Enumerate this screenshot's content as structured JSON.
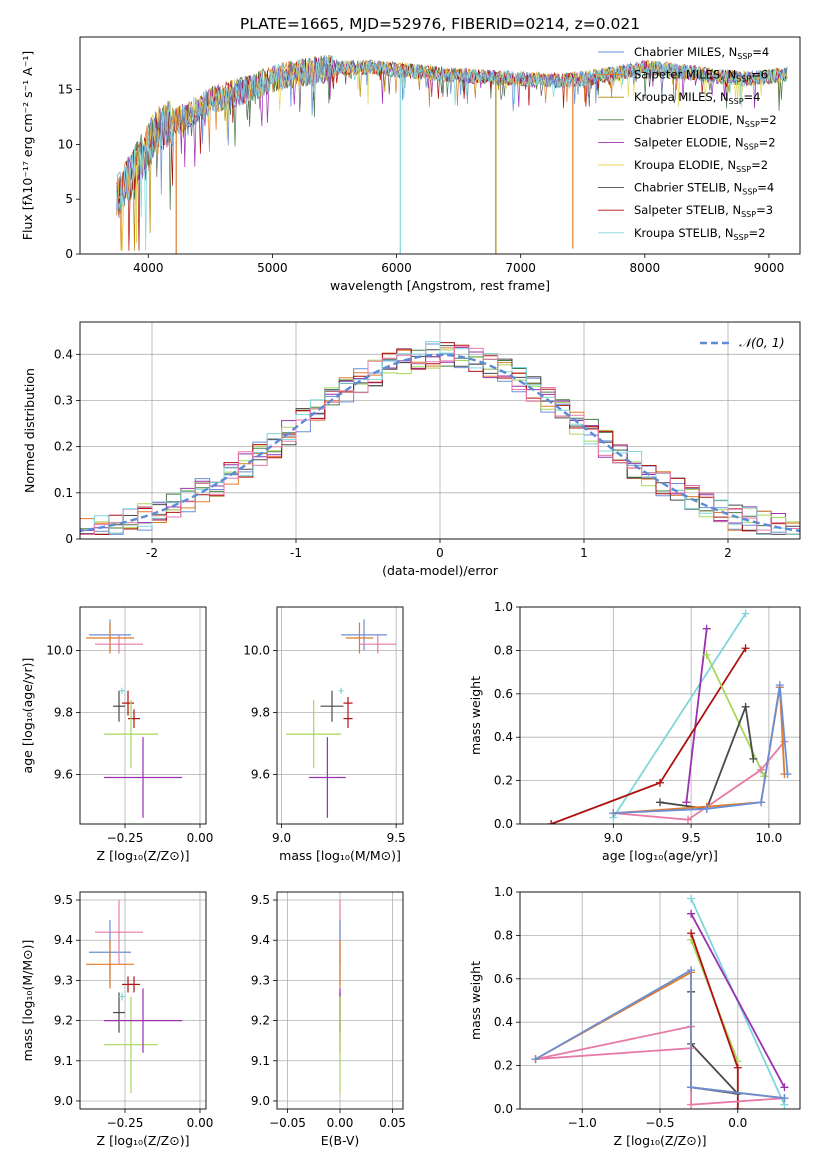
{
  "figure": {
    "title": "PLATE=1665, MJD=52976, FIBERID=0214, z=0.021"
  },
  "colors": {
    "c0": "#6b8fd6",
    "c1": "#e07b2a",
    "c2": "#b8860b",
    "c3": "#4a7a4a",
    "c4": "#9b30b0",
    "c5": "#e8d85a",
    "c6": "#4a4a4a",
    "c7": "#b01010",
    "c8": "#7fd6dc",
    "c9": "#e87aa8",
    "c10": "#a6d85a"
  },
  "chart_data": [
    {
      "id": "spectrum",
      "type": "line",
      "xlabel": "wavelength [Angstrom, rest frame]",
      "ylabel": "Flux [fλ10⁻¹⁷ erg cm⁻² s⁻¹ A⁻¹]",
      "xlim": [
        3450,
        9250
      ],
      "ylim": [
        0,
        19.8
      ],
      "xticks": [
        4000,
        5000,
        6000,
        7000,
        8000,
        9000
      ],
      "yticks": [
        0,
        5,
        10,
        15
      ],
      "grid": false,
      "legend_position": "top-right",
      "continuum": {
        "x": [
          3750,
          3850,
          4000,
          4100,
          4300,
          4500,
          4800,
          5000,
          5200,
          5500,
          5800,
          6000,
          6300,
          6600,
          7000,
          7300,
          7500,
          7800,
          8000,
          8200,
          8400,
          8600,
          8800,
          9000,
          9150
        ],
        "y": [
          5,
          7,
          10,
          11.5,
          12.5,
          14,
          15,
          16,
          16.5,
          17,
          17,
          16.8,
          16.5,
          16.2,
          16,
          15.8,
          16,
          16.5,
          17,
          16.8,
          16.5,
          16.2,
          16,
          16.2,
          16.4
        ]
      },
      "spikes": [
        {
          "x": 4225,
          "y": 0,
          "series": 1
        },
        {
          "x": 6030,
          "y": 0,
          "series": 8
        },
        {
          "x": 6800,
          "y": 0,
          "series": 2
        },
        {
          "x": 7420,
          "y": 0.5,
          "series": 1
        },
        {
          "x": 3905,
          "y": 1.0,
          "series": 5
        }
      ],
      "series": [
        {
          "name": "Chabrier MILES, N",
          "sub": "SSP",
          "suffix": "=4",
          "color": "c0"
        },
        {
          "name": "Salpeter MILES, N",
          "sub": "SSP",
          "suffix": "=6",
          "color": "c1"
        },
        {
          "name": "Kroupa MILES, N",
          "sub": "SSP",
          "suffix": "=4",
          "color": "c2"
        },
        {
          "name": "Chabrier ELODIE, N",
          "sub": "SSP",
          "suffix": "=2",
          "color": "c3"
        },
        {
          "name": "Salpeter ELODIE, N",
          "sub": "SSP",
          "suffix": "=2",
          "color": "c4"
        },
        {
          "name": "Kroupa ELODIE, N",
          "sub": "SSP",
          "suffix": "=2",
          "color": "c5"
        },
        {
          "name": "Chabrier STELIB, N",
          "sub": "SSP",
          "suffix": "=4",
          "color": "c6"
        },
        {
          "name": "Salpeter STELIB, N",
          "sub": "SSP",
          "suffix": "=3",
          "color": "c7"
        },
        {
          "name": "Kroupa STELIB, N",
          "sub": "SSP",
          "suffix": "=2",
          "color": "c8"
        }
      ]
    },
    {
      "id": "residuals",
      "type": "step-histogram",
      "xlabel": "(data-model)/error",
      "ylabel": "Normed distribution",
      "xlim": [
        -2.5,
        2.5
      ],
      "ylim": [
        0,
        0.47
      ],
      "xticks": [
        -2,
        -1,
        0,
        1,
        2
      ],
      "yticks": [
        0.0,
        0.1,
        0.2,
        0.3,
        0.4
      ],
      "grid": true,
      "bin_width": 0.1,
      "legend_position": "top-right",
      "gaussian": {
        "label": "𝒩(0, 1)",
        "mu": 0,
        "sigma": 1,
        "color": "#5b8bd6"
      },
      "histogram_colors": [
        "c0",
        "c1",
        "c3",
        "c4",
        "c10",
        "c6",
        "c7",
        "c8",
        "c9"
      ]
    },
    {
      "id": "z_age",
      "type": "errorbar",
      "xlabel": "Z [log₁₀(Z/Z⊙)]",
      "ylabel": "age  [log₁₀(age/yr)]",
      "xlim": [
        -0.4,
        0.02
      ],
      "ylim": [
        9.44,
        10.14
      ],
      "xticks": [
        -0.25,
        0.0
      ],
      "xticklabels": [
        "−0.25",
        "0.00"
      ],
      "yticks": [
        9.6,
        9.8,
        10.0
      ],
      "yticklabels": [
        "9.6",
        "9.8",
        "10.0"
      ],
      "grid": true,
      "points": [
        {
          "x": -0.3,
          "y": 10.05,
          "xerr": 0.07,
          "yerr": 0.05,
          "color": "c0"
        },
        {
          "x": -0.3,
          "y": 10.04,
          "xerr": 0.08,
          "yerr": 0.05,
          "color": "c1"
        },
        {
          "x": -0.27,
          "y": 10.02,
          "xerr": 0.08,
          "yerr": 0.03,
          "color": "c9"
        },
        {
          "x": -0.27,
          "y": 9.82,
          "xerr": 0.02,
          "yerr": 0.05,
          "color": "c6"
        },
        {
          "x": -0.26,
          "y": 9.87,
          "xerr": 0.01,
          "yerr": 0.01,
          "color": "c8"
        },
        {
          "x": -0.24,
          "y": 9.83,
          "xerr": 0.02,
          "yerr": 0.04,
          "color": "c7"
        },
        {
          "x": -0.22,
          "y": 9.78,
          "xerr": 0.02,
          "yerr": 0.03,
          "color": "c7"
        },
        {
          "x": -0.23,
          "y": 9.73,
          "xerr": 0.09,
          "yerr": 0.11,
          "color": "c10"
        },
        {
          "x": -0.19,
          "y": 9.59,
          "xerr": 0.13,
          "yerr": 0.13,
          "color": "c4"
        }
      ]
    },
    {
      "id": "mass_age",
      "type": "errorbar",
      "xlabel": "mass [log₁₀(M/M⊙)]",
      "ylabel": "",
      "xlim": [
        8.98,
        9.53
      ],
      "ylim": [
        9.44,
        10.14
      ],
      "xticks": [
        9.0,
        9.5
      ],
      "xticklabels": [
        "9.0",
        "9.5"
      ],
      "yticks": [
        9.6,
        9.8,
        10.0
      ],
      "yticklabels": [
        "9.6",
        "9.8",
        "10.0"
      ],
      "grid": true,
      "points": [
        {
          "x": 9.36,
          "y": 10.05,
          "xerr": 0.1,
          "yerr": 0.05,
          "color": "c0"
        },
        {
          "x": 9.34,
          "y": 10.04,
          "xerr": 0.06,
          "yerr": 0.05,
          "color": "c1"
        },
        {
          "x": 9.42,
          "y": 10.02,
          "xerr": 0.08,
          "yerr": 0.03,
          "color": "c9"
        },
        {
          "x": 9.22,
          "y": 9.82,
          "xerr": 0.05,
          "yerr": 0.05,
          "color": "c6"
        },
        {
          "x": 9.26,
          "y": 9.87,
          "xerr": 0.01,
          "yerr": 0.01,
          "color": "c8"
        },
        {
          "x": 9.29,
          "y": 9.83,
          "xerr": 0.02,
          "yerr": 0.02,
          "color": "c7"
        },
        {
          "x": 9.29,
          "y": 9.78,
          "xerr": 0.02,
          "yerr": 0.03,
          "color": "c7"
        },
        {
          "x": 9.14,
          "y": 9.73,
          "xerr": 0.12,
          "yerr": 0.11,
          "color": "c10"
        },
        {
          "x": 9.2,
          "y": 9.59,
          "xerr": 0.08,
          "yerr": 0.13,
          "color": "c4"
        }
      ]
    },
    {
      "id": "age_weight",
      "type": "line",
      "xlabel": "age  [log₁₀(age/yr)]",
      "ylabel": "mass weight",
      "xlim": [
        8.4,
        10.2
      ],
      "ylim": [
        0,
        1.0
      ],
      "xticks": [
        9.0,
        9.5,
        10.0
      ],
      "xticklabels": [
        "9.0",
        "9.5",
        "10.0"
      ],
      "yticks": [
        0.0,
        0.2,
        0.4,
        0.6,
        0.8,
        1.0
      ],
      "yticklabels": [
        "0.0",
        "0.2",
        "0.4",
        "0.6",
        "0.8",
        "1.0"
      ],
      "grid": true,
      "series": [
        {
          "color": "c8",
          "x": [
            9.0,
            9.85
          ],
          "y": [
            0.03,
            0.97
          ]
        },
        {
          "color": "c4",
          "x": [
            9.47,
            9.6
          ],
          "y": [
            0.1,
            0.9
          ]
        },
        {
          "color": "c7",
          "x": [
            8.6,
            9.3,
            9.85
          ],
          "y": [
            0.0,
            0.19,
            0.81
          ]
        },
        {
          "color": "c10",
          "x": [
            9.6,
            9.97
          ],
          "y": [
            0.78,
            0.22
          ]
        },
        {
          "color": "c6",
          "x": [
            9.3,
            9.6,
            9.85,
            9.9
          ],
          "y": [
            0.1,
            0.07,
            0.54,
            0.3
          ]
        },
        {
          "color": "c9",
          "x": [
            9.0,
            9.48,
            9.95,
            10.1
          ],
          "y": [
            0.05,
            0.02,
            0.25,
            0.38
          ]
        },
        {
          "color": "c1",
          "x": [
            9.0,
            9.6,
            9.95,
            10.07,
            10.1
          ],
          "y": [
            0.05,
            0.08,
            0.1,
            0.63,
            0.23
          ]
        },
        {
          "color": "c0",
          "x": [
            9.0,
            9.6,
            9.95,
            10.07,
            10.12
          ],
          "y": [
            0.05,
            0.07,
            0.1,
            0.64,
            0.23
          ]
        }
      ]
    },
    {
      "id": "z_mass",
      "type": "errorbar",
      "xlabel": "Z [log₁₀(Z/Z⊙)]",
      "ylabel": "mass [log₁₀(M/M⊙)]",
      "xlim": [
        -0.4,
        0.02
      ],
      "ylim": [
        8.98,
        9.52
      ],
      "xticks": [
        -0.25,
        0.0
      ],
      "xticklabels": [
        "−0.25",
        "0.00"
      ],
      "yticks": [
        9.0,
        9.1,
        9.2,
        9.3,
        9.4,
        9.5
      ],
      "yticklabels": [
        "9.0",
        "9.1",
        "9.2",
        "9.3",
        "9.4",
        "9.5"
      ],
      "grid": true,
      "points": [
        {
          "x": -0.3,
          "y": 9.37,
          "xerr": 0.07,
          "yerr": 0.08,
          "color": "c0"
        },
        {
          "x": -0.3,
          "y": 9.34,
          "xerr": 0.08,
          "yerr": 0.06,
          "color": "c1"
        },
        {
          "x": -0.27,
          "y": 9.42,
          "xerr": 0.08,
          "yerr": 0.08,
          "color": "c9"
        },
        {
          "x": -0.27,
          "y": 9.22,
          "xerr": 0.02,
          "yerr": 0.05,
          "color": "c6"
        },
        {
          "x": -0.26,
          "y": 9.26,
          "xerr": 0.01,
          "yerr": 0.01,
          "color": "c8"
        },
        {
          "x": -0.24,
          "y": 9.29,
          "xerr": 0.02,
          "yerr": 0.02,
          "color": "c7"
        },
        {
          "x": -0.22,
          "y": 9.29,
          "xerr": 0.02,
          "yerr": 0.02,
          "color": "c7"
        },
        {
          "x": -0.23,
          "y": 9.14,
          "xerr": 0.09,
          "yerr": 0.12,
          "color": "c10"
        },
        {
          "x": -0.19,
          "y": 9.2,
          "xerr": 0.13,
          "yerr": 0.08,
          "color": "c4"
        }
      ]
    },
    {
      "id": "ebv_mass",
      "type": "errorbar",
      "xlabel": "E(B-V)",
      "ylabel": "",
      "xlim": [
        -0.06,
        0.06
      ],
      "ylim": [
        8.98,
        9.52
      ],
      "xticks": [
        -0.05,
        0.0,
        0.05
      ],
      "xticklabels": [
        "−0.05",
        "0.00",
        "0.05"
      ],
      "yticks": [
        9.0,
        9.1,
        9.2,
        9.3,
        9.4,
        9.5
      ],
      "yticklabels": [
        "9.0",
        "9.1",
        "9.2",
        "9.3",
        "9.4",
        "9.5"
      ],
      "grid": true,
      "points": [
        {
          "x": 0.0,
          "y": 9.42,
          "xerr": 0,
          "yerr": 0.08,
          "color": "c9"
        },
        {
          "x": 0.0,
          "y": 9.37,
          "xerr": 0,
          "yerr": 0.08,
          "color": "c0"
        },
        {
          "x": 0.0,
          "y": 9.34,
          "xerr": 0,
          "yerr": 0.06,
          "color": "c1"
        },
        {
          "x": 0.0,
          "y": 9.26,
          "xerr": 0,
          "yerr": 0.01,
          "color": "c8"
        },
        {
          "x": 0.0,
          "y": 9.22,
          "xerr": 0,
          "yerr": 0.05,
          "color": "c6"
        },
        {
          "x": 0.0,
          "y": 9.2,
          "xerr": 0,
          "yerr": 0.08,
          "color": "c4"
        },
        {
          "x": 0.0,
          "y": 9.14,
          "xerr": 0,
          "yerr": 0.12,
          "color": "c10"
        }
      ]
    },
    {
      "id": "z_weight",
      "type": "line",
      "xlabel": "Z [log₁₀(Z/Z⊙)]",
      "ylabel": "mass weight",
      "xlim": [
        -1.4,
        0.4
      ],
      "ylim": [
        0,
        1.0
      ],
      "xticks": [
        -1.0,
        -0.5,
        0.0
      ],
      "xticklabels": [
        "−1.0",
        "−0.5",
        "0.0"
      ],
      "yticks": [
        0.0,
        0.2,
        0.4,
        0.6,
        0.8,
        1.0
      ],
      "yticklabels": [
        "0.0",
        "0.2",
        "0.4",
        "0.6",
        "0.8",
        "1.0"
      ],
      "grid": true,
      "series": [
        {
          "color": "c8",
          "x": [
            -0.3,
            0.3
          ],
          "y": [
            0.97,
            0.02
          ]
        },
        {
          "color": "c4",
          "x": [
            -0.3,
            0.3
          ],
          "y": [
            0.9,
            0.1
          ]
        },
        {
          "color": "c10",
          "x": [
            -0.3,
            0.0
          ],
          "y": [
            0.78,
            0.22
          ]
        },
        {
          "color": "c7",
          "x": [
            -0.3,
            0.0,
            0.0
          ],
          "y": [
            0.81,
            0.19,
            0.0
          ]
        },
        {
          "color": "c6",
          "x": [
            -0.3,
            -0.3,
            0.0,
            -0.3
          ],
          "y": [
            0.54,
            0.3,
            0.07,
            0.1
          ]
        },
        {
          "color": "c9",
          "x": [
            -0.3,
            -1.3,
            -0.3,
            -0.3,
            0.3
          ],
          "y": [
            0.38,
            0.23,
            0.28,
            0.02,
            0.05
          ]
        },
        {
          "color": "c1",
          "x": [
            -1.3,
            -0.3,
            -0.3,
            0.3
          ],
          "y": [
            0.23,
            0.63,
            0.1,
            0.05
          ]
        },
        {
          "color": "c0",
          "x": [
            -1.3,
            -0.3,
            -0.3,
            0.3
          ],
          "y": [
            0.23,
            0.64,
            0.1,
            0.05
          ]
        }
      ]
    }
  ]
}
